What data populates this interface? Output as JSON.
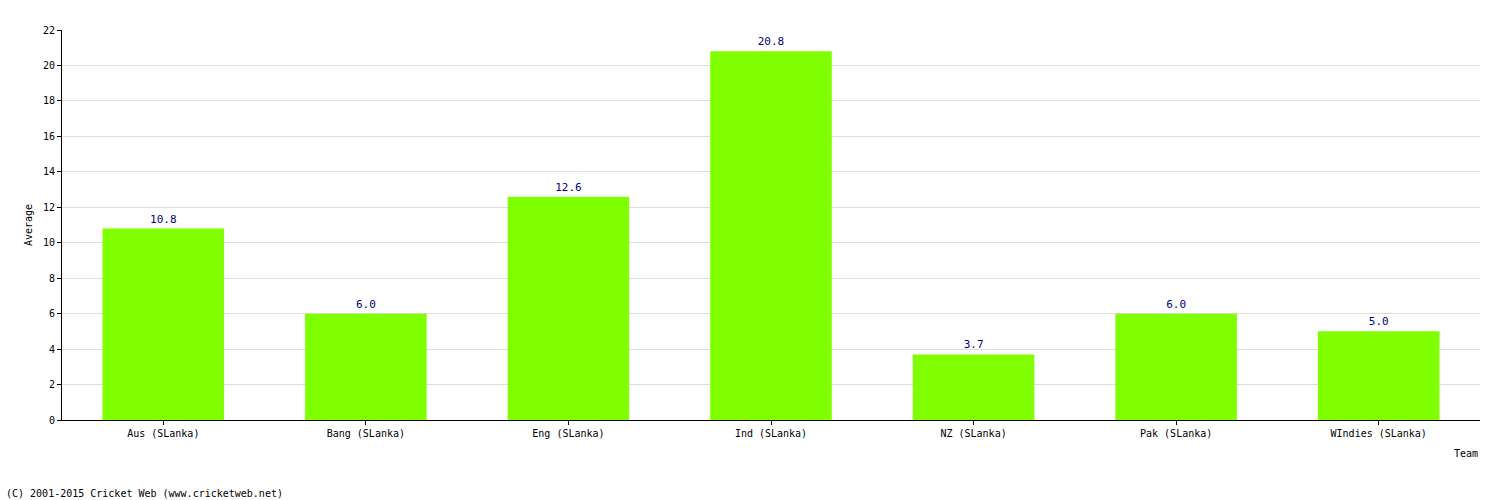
{
  "chart_data": {
    "type": "bar",
    "x_label": "Team",
    "y_label": "Average",
    "categories": [
      "Aus (SLanka)",
      "Bang (SLanka)",
      "Eng (SLanka)",
      "Ind (SLanka)",
      "NZ (SLanka)",
      "Pak (SLanka)",
      "WIndies (SLanka)"
    ],
    "values": [
      10.8,
      6.0,
      12.6,
      20.8,
      3.7,
      6.0,
      5.0
    ],
    "value_labels": [
      "10.8",
      "6.0",
      "12.6",
      "20.8",
      "3.7",
      "6.0",
      "5.0"
    ],
    "data_labels": true,
    "color": "#7fff00",
    "ylim": [
      0,
      22
    ],
    "yticks": [
      0,
      2,
      4,
      6,
      8,
      10,
      12,
      14,
      16,
      18,
      20,
      22
    ],
    "grid": true,
    "annotations": [
      "(C) 2001-2015 Cricket Web (www.cricketweb.net)"
    ]
  }
}
